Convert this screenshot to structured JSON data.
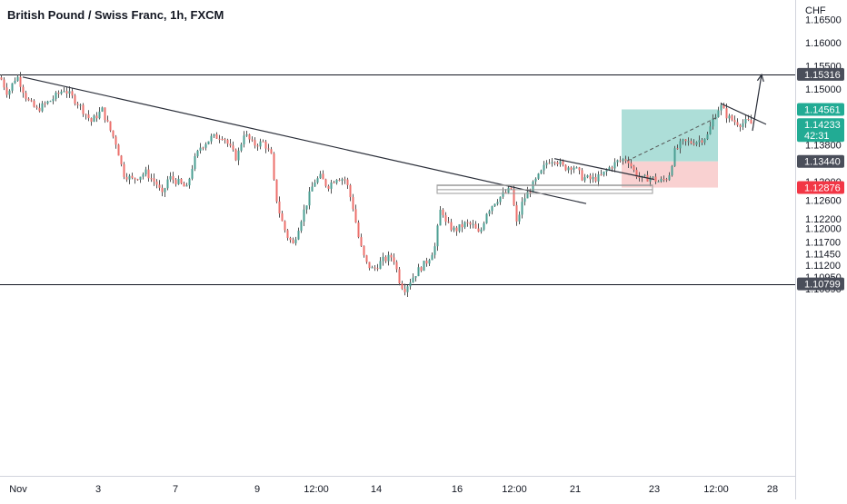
{
  "header": {
    "title": "British Pound / Swiss Franc, 1h, FXCM"
  },
  "colors": {
    "up": "#26a69a",
    "down": "#ef5350",
    "up_body": "#4a9e92",
    "down_body": "#ec6f6b",
    "wick": "#555555",
    "line": "#131722",
    "axis_text": "#131722",
    "tp_zone": "#9fd8d1",
    "sl_zone": "#f8c9c9",
    "tag_dark": "#4a4e5a",
    "tag_green": "#22ab94",
    "tag_red": "#f23645"
  },
  "chart_data": {
    "type": "candlestick",
    "title": "British Pound / Swiss Franc, 1h, FXCM",
    "currency_label": "CHF",
    "ylim": [
      1.0666,
      1.1692
    ],
    "y_ticks": [
      "1.16500",
      "1.16000",
      "1.15500",
      "1.15000",
      "1.13800",
      "1.13000",
      "1.12600",
      "1.12200",
      "1.12000",
      "1.11700",
      "1.11450",
      "1.11200",
      "1.10950",
      "1.10690"
    ],
    "x_ticks": [
      "Nov",
      "3",
      "7",
      "9",
      "12:00",
      "14",
      "16",
      "12:00",
      "21",
      "23",
      "12:00",
      "28"
    ],
    "price_tags": [
      {
        "label": "1.15316",
        "value": 1.15316,
        "style": "dark"
      },
      {
        "label": "1.14561",
        "value": 1.14561,
        "style": "green"
      },
      {
        "label": "1.14233",
        "value": 1.14233,
        "countdown": "42:31",
        "style": "green"
      },
      {
        "label": "1.13440",
        "value": 1.1344,
        "style": "dark"
      },
      {
        "label": "1.12876",
        "value": 1.12876,
        "style": "red"
      },
      {
        "label": "1.10799",
        "value": 1.10799,
        "style": "dark"
      }
    ],
    "horizontal_lines": [
      1.15316,
      1.10799
    ],
    "position": {
      "take_profit": 1.14561,
      "entry": 1.1344,
      "stop_loss": 1.12876
    },
    "close_anchors": [
      [
        0,
        1.1525
      ],
      [
        8,
        1.149
      ],
      [
        18,
        1.153
      ],
      [
        30,
        1.1475
      ],
      [
        40,
        1.1455
      ],
      [
        55,
        1.1475
      ],
      [
        70,
        1.15
      ],
      [
        85,
        1.147
      ],
      [
        100,
        1.143
      ],
      [
        112,
        1.1455
      ],
      [
        120,
        1.1415
      ],
      [
        128,
        1.138
      ],
      [
        135,
        1.1318
      ],
      [
        145,
        1.1305
      ],
      [
        160,
        1.132
      ],
      [
        172,
        1.1295
      ],
      [
        178,
        1.127
      ],
      [
        185,
        1.131
      ],
      [
        195,
        1.13
      ],
      [
        205,
        1.1285
      ],
      [
        212,
        1.134
      ],
      [
        220,
        1.1375
      ],
      [
        232,
        1.1395
      ],
      [
        245,
        1.14
      ],
      [
        252,
        1.1375
      ],
      [
        260,
        1.135
      ],
      [
        268,
        1.1405
      ],
      [
        278,
        1.138
      ],
      [
        290,
        1.1385
      ],
      [
        298,
        1.1355
      ],
      [
        302,
        1.128
      ],
      [
        308,
        1.1225
      ],
      [
        315,
        1.1185
      ],
      [
        322,
        1.1165
      ],
      [
        330,
        1.1215
      ],
      [
        338,
        1.126
      ],
      [
        345,
        1.13
      ],
      [
        352,
        1.131
      ],
      [
        360,
        1.129
      ],
      [
        370,
        1.131
      ],
      [
        380,
        1.1305
      ],
      [
        388,
        1.1245
      ],
      [
        395,
        1.117
      ],
      [
        402,
        1.1125
      ],
      [
        410,
        1.111
      ],
      [
        420,
        1.113
      ],
      [
        432,
        1.114
      ],
      [
        440,
        1.108
      ],
      [
        445,
        1.107
      ],
      [
        452,
        1.109
      ],
      [
        460,
        1.111
      ],
      [
        470,
        1.113
      ],
      [
        478,
        1.116
      ],
      [
        485,
        1.125
      ],
      [
        490,
        1.121
      ],
      [
        500,
        1.1195
      ],
      [
        512,
        1.121
      ],
      [
        520,
        1.1205
      ],
      [
        527,
        1.1185
      ],
      [
        535,
        1.1235
      ],
      [
        545,
        1.126
      ],
      [
        555,
        1.1275
      ],
      [
        562,
        1.1285
      ],
      [
        568,
        1.121
      ],
      [
        575,
        1.126
      ],
      [
        585,
        1.129
      ],
      [
        595,
        1.132
      ],
      [
        602,
        1.1345
      ],
      [
        610,
        1.135
      ],
      [
        620,
        1.133
      ],
      [
        630,
        1.1335
      ],
      [
        640,
        1.131
      ],
      [
        650,
        1.1305
      ],
      [
        660,
        1.131
      ],
      [
        670,
        1.133
      ],
      [
        680,
        1.1345
      ],
      [
        690,
        1.135
      ],
      [
        698,
        1.132
      ],
      [
        705,
        1.1305
      ],
      [
        715,
        1.131
      ],
      [
        725,
        1.13
      ],
      [
        735,
        1.131
      ],
      [
        742,
        1.1365
      ],
      [
        750,
        1.1385
      ],
      [
        760,
        1.1385
      ],
      [
        770,
        1.139
      ],
      [
        778,
        1.14
      ],
      [
        785,
        1.144
      ],
      [
        792,
        1.1465
      ],
      [
        800,
        1.144
      ],
      [
        808,
        1.143
      ],
      [
        815,
        1.1425
      ],
      [
        822,
        1.143
      ],
      [
        828,
        1.1423
      ]
    ],
    "drawings": [
      {
        "type": "trendline",
        "from": [
          25,
          1.1526
        ],
        "to": [
          645,
          1.1253
        ]
      },
      {
        "type": "trendline",
        "from": [
          610,
          1.135
        ],
        "to": [
          720,
          1.1305
        ]
      },
      {
        "type": "trendline",
        "from": [
          793,
          1.1469
        ],
        "to": [
          843,
          1.1424
        ]
      },
      {
        "type": "arrow",
        "from": [
          828,
          1.141
        ],
        "to": [
          838,
          1.1531
        ]
      },
      {
        "type": "dashed",
        "from": [
          690,
          1.1345
        ],
        "to": [
          790,
          1.144
        ]
      },
      {
        "type": "rect",
        "from": [
          481,
          1.1293
        ],
        "to": [
          718,
          1.1275
        ]
      },
      {
        "type": "rect",
        "from": [
          481,
          1.1292
        ],
        "to": [
          718,
          1.1283
        ]
      }
    ]
  }
}
